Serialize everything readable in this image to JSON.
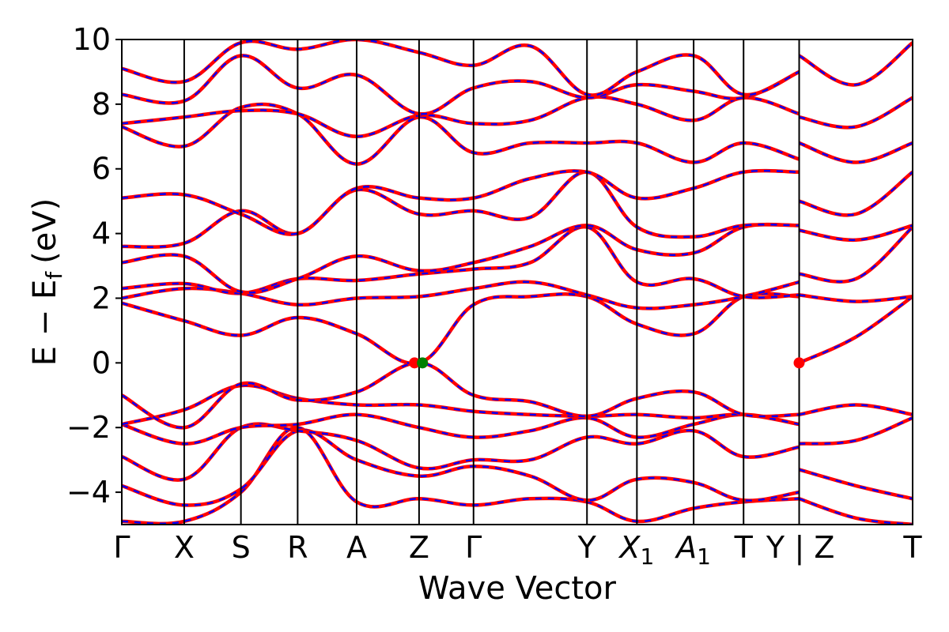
{
  "chart_data": {
    "type": "line",
    "title": "",
    "xlabel": "Wave Vector",
    "ylabel": "E − E",
    "ylabel_subscript": "f",
    "ylabel_unit": "(eV)",
    "ylim": [
      -5,
      10
    ],
    "yticks": [
      -4,
      -2,
      0,
      2,
      4,
      6,
      8,
      10
    ],
    "ytick_labels": [
      "−4",
      "−2",
      "0",
      "2",
      "4",
      "6",
      "8",
      "10"
    ],
    "kpath": [
      {
        "label": "Γ",
        "x": 0.0
      },
      {
        "label": "X",
        "x": 0.55
      },
      {
        "label": "S",
        "x": 1.05
      },
      {
        "label": "R",
        "x": 1.55
      },
      {
        "label": "A",
        "x": 2.07
      },
      {
        "label": "Z",
        "x": 2.62
      },
      {
        "label": "Γ",
        "x": 3.1
      },
      {
        "label": "Y",
        "x": 4.1
      },
      {
        "label": "X",
        "sub": "1",
        "italic": true,
        "x": 4.54
      },
      {
        "label": "A",
        "sub": "1",
        "italic": true,
        "x": 5.04
      },
      {
        "label": "T",
        "x": 5.48
      },
      {
        "label": "Y",
        "x": 5.97
      },
      {
        "label": "Z",
        "x": 5.97,
        "prefix": "| "
      },
      {
        "label": "T",
        "x": 6.97
      }
    ],
    "xlim": [
      0,
      6.97
    ],
    "legend": "none",
    "grid": false,
    "series_styles": [
      {
        "color": "#ff0000",
        "style": "solid"
      },
      {
        "color": "#0000ff",
        "style": "dashed"
      }
    ],
    "bands": [
      {
        "x": [
          0,
          0.55,
          1.05,
          1.55,
          2.07,
          2.62,
          3.1,
          3.6,
          4.1,
          4.54,
          5.04,
          5.48,
          5.97
        ],
        "y": [
          -4.9,
          -4.9,
          -4.0,
          -2.0,
          -4.3,
          -4.2,
          -4.4,
          -4.2,
          -4.3,
          -4.9,
          -4.5,
          -4.3,
          -4.2
        ]
      },
      {
        "x": [
          0,
          0.55,
          1.05,
          1.55,
          2.07,
          2.62,
          3.1,
          3.6,
          4.1,
          4.54,
          5.04,
          5.48,
          5.97
        ],
        "y": [
          -3.8,
          -4.4,
          -3.9,
          -2.1,
          -3.0,
          -3.5,
          -3.2,
          -3.5,
          -4.25,
          -3.6,
          -3.7,
          -4.25,
          -4.0
        ]
      },
      {
        "x": [
          0,
          0.55,
          1.05,
          1.55,
          2.07,
          2.62,
          3.1,
          3.6,
          4.1,
          4.54,
          5.04,
          5.48,
          5.97
        ],
        "y": [
          -2.9,
          -3.6,
          -2.0,
          -2.1,
          -2.4,
          -3.25,
          -3.0,
          -3.0,
          -2.3,
          -2.5,
          -2.1,
          -2.9,
          -2.6
        ]
      },
      {
        "x": [
          0,
          0.55,
          1.05,
          1.55,
          2.07,
          2.62,
          3.1,
          3.6,
          4.1,
          4.54,
          5.04,
          5.48,
          5.97
        ],
        "y": [
          -1.9,
          -2.5,
          -2.0,
          -1.9,
          -1.6,
          -2.0,
          -2.3,
          -2.1,
          -1.7,
          -2.3,
          -1.9,
          -1.6,
          -1.9
        ]
      },
      {
        "x": [
          0,
          0.55,
          1.05,
          1.55,
          2.07,
          2.62,
          3.1,
          3.6,
          4.1,
          4.54,
          5.04,
          5.48,
          5.97
        ],
        "y": [
          -1.9,
          -1.45,
          -0.7,
          -1.1,
          -1.3,
          -1.3,
          -1.5,
          -1.6,
          -1.65,
          -1.6,
          -1.7,
          -1.6,
          -1.9
        ]
      },
      {
        "x": [
          0,
          0.55,
          1.05,
          1.55,
          2.07,
          2.62,
          3.1,
          3.6,
          4.1,
          4.54,
          5.04,
          5.48,
          5.97
        ],
        "y": [
          -1.0,
          -2.0,
          -0.65,
          -1.15,
          -0.9,
          0.0,
          -1.0,
          -1.2,
          -1.65,
          -1.1,
          -0.9,
          -1.6,
          -1.6
        ]
      },
      {
        "x": [
          0,
          0.55,
          1.05,
          1.55,
          2.07,
          2.62,
          3.1,
          3.6,
          4.1,
          4.54,
          5.04,
          5.48,
          5.97
        ],
        "y": [
          1.85,
          1.3,
          0.85,
          1.4,
          0.9,
          0.0,
          1.8,
          2.05,
          2.05,
          1.2,
          0.9,
          2.05,
          2.05
        ]
      },
      {
        "x": [
          0,
          0.55,
          1.05,
          1.55,
          2.07,
          2.62,
          3.1,
          3.6,
          4.1,
          4.54,
          5.04,
          5.48,
          5.97
        ],
        "y": [
          2.0,
          2.3,
          2.15,
          1.8,
          2.0,
          2.05,
          2.3,
          2.5,
          2.1,
          1.7,
          1.8,
          2.05,
          2.5
        ]
      },
      {
        "x": [
          0,
          0.55,
          1.05,
          1.55,
          2.07,
          2.62,
          3.1,
          3.6,
          4.1,
          4.54,
          5.04,
          5.48,
          5.97
        ],
        "y": [
          2.3,
          2.45,
          2.15,
          2.6,
          2.55,
          2.75,
          2.9,
          3.1,
          4.2,
          2.5,
          2.6,
          2.05,
          2.1
        ]
      },
      {
        "x": [
          0,
          0.55,
          1.05,
          1.55,
          2.07,
          2.62,
          3.1,
          3.6,
          4.1,
          4.54,
          5.04,
          5.48,
          5.97
        ],
        "y": [
          3.1,
          3.3,
          2.2,
          2.6,
          3.3,
          2.85,
          3.1,
          3.6,
          4.25,
          3.5,
          3.4,
          4.2,
          4.25
        ]
      },
      {
        "x": [
          0,
          0.55,
          1.05,
          1.55,
          2.07,
          2.62,
          3.1,
          3.6,
          4.1,
          4.54,
          5.04,
          5.48,
          5.97
        ],
        "y": [
          3.6,
          3.7,
          4.7,
          4.0,
          5.35,
          4.6,
          4.7,
          4.5,
          5.9,
          4.2,
          3.9,
          4.25,
          4.25
        ]
      },
      {
        "x": [
          0,
          0.55,
          1.05,
          1.55,
          2.07,
          2.62,
          3.1,
          3.6,
          4.1,
          4.54,
          5.04,
          5.48,
          5.97
        ],
        "y": [
          5.1,
          5.2,
          4.6,
          4.0,
          5.4,
          5.1,
          5.1,
          5.7,
          5.9,
          5.1,
          5.4,
          5.9,
          5.9
        ]
      },
      {
        "x": [
          0,
          0.55,
          1.05,
          1.55,
          2.07,
          2.62,
          3.1,
          3.6,
          4.1,
          4.54,
          5.04,
          5.48,
          5.97
        ],
        "y": [
          7.3,
          6.7,
          7.9,
          7.7,
          6.15,
          7.6,
          6.5,
          6.8,
          6.8,
          6.8,
          6.2,
          6.8,
          6.3
        ]
      },
      {
        "x": [
          0,
          0.55,
          1.05,
          1.55,
          2.07,
          2.62,
          3.1,
          3.6,
          4.1,
          4.54,
          5.04,
          5.48,
          5.97
        ],
        "y": [
          7.4,
          7.6,
          7.8,
          7.7,
          7.0,
          7.65,
          7.4,
          7.5,
          8.2,
          8.0,
          7.5,
          8.2,
          7.7
        ]
      },
      {
        "x": [
          0,
          0.55,
          1.05,
          1.55,
          2.07,
          2.62,
          3.1,
          3.6,
          4.1,
          4.54,
          5.04,
          5.48,
          5.97
        ],
        "y": [
          8.3,
          8.1,
          9.5,
          8.5,
          8.9,
          7.7,
          8.5,
          8.7,
          8.2,
          8.6,
          8.4,
          8.2,
          9.0
        ]
      },
      {
        "x": [
          0,
          0.55,
          1.05,
          1.55,
          2.07,
          2.62,
          3.1,
          3.6,
          4.1,
          4.54,
          5.04,
          5.48,
          5.97
        ],
        "y": [
          9.1,
          8.7,
          9.9,
          9.7,
          10.0,
          9.6,
          9.2,
          9.8,
          8.3,
          9.0,
          9.5,
          8.3,
          9.0
        ]
      },
      {
        "x": [
          5.97,
          6.47,
          6.97
        ],
        "y": [
          -4.2,
          -4.8,
          -5.0
        ]
      },
      {
        "x": [
          5.97,
          6.47,
          6.97
        ],
        "y": [
          -3.3,
          -3.8,
          -4.2
        ]
      },
      {
        "x": [
          5.97,
          6.47,
          6.97
        ],
        "y": [
          -2.5,
          -2.4,
          -1.7
        ]
      },
      {
        "x": [
          5.97,
          6.47,
          6.97
        ],
        "y": [
          -1.6,
          -1.3,
          -1.6
        ]
      },
      {
        "x": [
          5.97,
          6.47,
          6.97
        ],
        "y": [
          0.0,
          0.8,
          2.05
        ]
      },
      {
        "x": [
          5.97,
          6.47,
          6.97
        ],
        "y": [
          2.1,
          1.9,
          2.05
        ]
      },
      {
        "x": [
          5.97,
          6.47,
          6.97
        ],
        "y": [
          2.75,
          2.6,
          4.2
        ]
      },
      {
        "x": [
          5.97,
          6.47,
          6.97
        ],
        "y": [
          4.1,
          3.8,
          4.25
        ]
      },
      {
        "x": [
          5.97,
          6.47,
          6.97
        ],
        "y": [
          5.0,
          4.6,
          5.9
        ]
      },
      {
        "x": [
          5.97,
          6.47,
          6.97
        ],
        "y": [
          6.8,
          6.2,
          6.8
        ]
      },
      {
        "x": [
          5.97,
          6.47,
          6.97
        ],
        "y": [
          7.6,
          7.3,
          8.2
        ]
      },
      {
        "x": [
          5.97,
          6.47,
          6.97
        ],
        "y": [
          9.5,
          8.6,
          9.9
        ]
      }
    ],
    "markers": [
      {
        "x": 2.58,
        "y": 0.0,
        "color": "#ff0000"
      },
      {
        "x": 2.65,
        "y": 0.0,
        "color": "#008000"
      },
      {
        "x": 5.97,
        "y": 0.0,
        "color": "#ff0000"
      }
    ]
  }
}
